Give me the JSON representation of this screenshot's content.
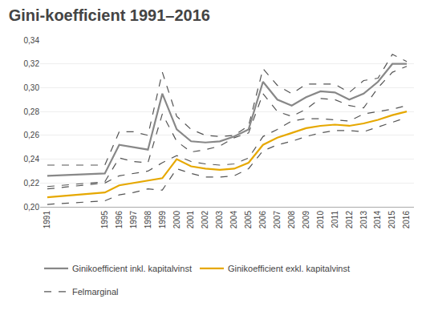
{
  "chart_data": {
    "type": "line",
    "title": "Gini-koefficient 1991–2016",
    "x": [
      1991,
      1995,
      1996,
      1997,
      1998,
      1999,
      2000,
      2001,
      2002,
      2003,
      2004,
      2005,
      2006,
      2007,
      2008,
      2009,
      2010,
      2011,
      2012,
      2013,
      2014,
      2015,
      2016
    ],
    "series": [
      {
        "name": "Felmarginal",
        "color": "#555555",
        "line_style": "dashed",
        "values": [
          0.235,
          0.235,
          0.263,
          0.263,
          0.26,
          0.313,
          0.276,
          0.265,
          0.26,
          0.259,
          0.26,
          0.268,
          0.316,
          0.302,
          0.295,
          0.303,
          0.303,
          0.303,
          0.296,
          0.306,
          0.308,
          0.328,
          0.322
        ]
      },
      {
        "name": "Felmarginal",
        "color": "#555555",
        "line_style": "dashed",
        "values": [
          0.217,
          0.221,
          0.241,
          0.238,
          0.237,
          0.278,
          0.255,
          0.246,
          0.248,
          0.251,
          0.258,
          0.262,
          0.295,
          0.28,
          0.276,
          0.282,
          0.291,
          0.29,
          0.285,
          0.283,
          0.3,
          0.313,
          0.318
        ]
      },
      {
        "name": "Felmarginal",
        "color": "#555555",
        "line_style": "dashed",
        "values": [
          0.215,
          0.22,
          0.226,
          0.228,
          0.23,
          0.237,
          0.243,
          0.238,
          0.236,
          0.235,
          0.236,
          0.241,
          0.259,
          0.265,
          0.272,
          0.274,
          0.274,
          0.273,
          0.272,
          0.278,
          0.28,
          0.282,
          0.285
        ]
      },
      {
        "name": "Felmarginal",
        "color": "#555555",
        "line_style": "dashed",
        "values": [
          0.202,
          0.205,
          0.21,
          0.212,
          0.215,
          0.214,
          0.232,
          0.228,
          0.225,
          0.225,
          0.226,
          0.232,
          0.247,
          0.252,
          0.255,
          0.259,
          0.262,
          0.264,
          0.264,
          0.263,
          0.267,
          0.271,
          0.275
        ]
      },
      {
        "name": "Ginikoefficient inkl. kapitalvinst",
        "color": "#888888",
        "line_style": "solid",
        "values": [
          0.226,
          0.228,
          0.252,
          0.25,
          0.248,
          0.295,
          0.265,
          0.255,
          0.254,
          0.255,
          0.259,
          0.265,
          0.305,
          0.29,
          0.285,
          0.292,
          0.297,
          0.296,
          0.29,
          0.295,
          0.305,
          0.32,
          0.32
        ]
      },
      {
        "name": "Ginikoefficient exkl. kapitalvinst",
        "color": "#E6A800",
        "line_style": "solid",
        "values": [
          0.208,
          0.212,
          0.218,
          0.22,
          0.222,
          0.224,
          0.24,
          0.234,
          0.232,
          0.231,
          0.232,
          0.237,
          0.252,
          0.258,
          0.262,
          0.266,
          0.268,
          0.269,
          0.268,
          0.27,
          0.273,
          0.277,
          0.28
        ]
      }
    ],
    "xlim": [
      1990.5,
      2016.5
    ],
    "xticks": [
      1991,
      1995,
      1996,
      1997,
      1998,
      1999,
      2000,
      2001,
      2002,
      2003,
      2004,
      2005,
      2006,
      2007,
      2008,
      2009,
      2010,
      2011,
      2012,
      2013,
      2014,
      2015,
      2016
    ],
    "ylim": [
      0.2,
      0.34
    ],
    "yticks": [
      {
        "value": 0.2,
        "label": "0,20"
      },
      {
        "value": 0.22,
        "label": "0,22"
      },
      {
        "value": 0.24,
        "label": "0,24"
      },
      {
        "value": 0.26,
        "label": "0,26"
      },
      {
        "value": 0.28,
        "label": "0,28"
      },
      {
        "value": 0.3,
        "label": "0,30"
      },
      {
        "value": 0.32,
        "label": "0,32"
      },
      {
        "value": 0.34,
        "label": "0,34"
      }
    ],
    "grid": true,
    "legend": "bottom"
  }
}
